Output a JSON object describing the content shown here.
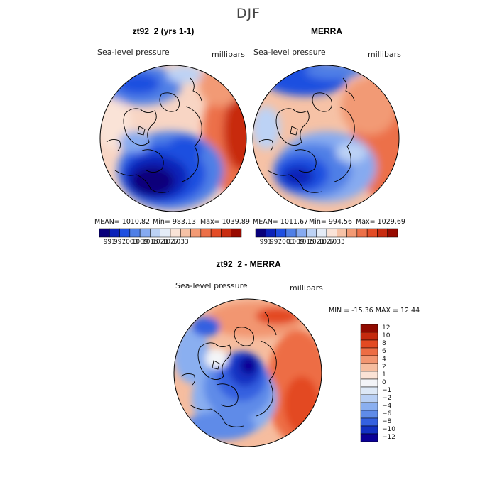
{
  "figure": {
    "season": "DJF"
  },
  "panels": [
    {
      "id": "model",
      "title": "zt92_2 (yrs 1-1)",
      "variable": "Sea-level pressure",
      "units": "millibars",
      "stats": {
        "mean": "MEAN= 1010.82",
        "min": "Min= 983.13",
        "max": "Max= 1039.89"
      },
      "colorbar_ticks": [
        "991",
        "997",
        "1003",
        "1009",
        "1015",
        "1021",
        "1027",
        "1033"
      ]
    },
    {
      "id": "obs",
      "title": "MERRA",
      "variable": "Sea-level pressure",
      "units": "millibars",
      "stats": {
        "mean": "MEAN= 1011.67",
        "min": "Min= 994.56",
        "max": "Max= 1029.69"
      },
      "colorbar_ticks": [
        "991",
        "997",
        "1003",
        "1009",
        "1015",
        "1021",
        "1027",
        "1033"
      ]
    },
    {
      "id": "diff",
      "title": "zt92_2 - MERRA",
      "variable": "Sea-level pressure",
      "units": "millibars",
      "stats_line": "MIN = -15.36  MAX =  12.44",
      "colorbar_ticks": [
        "12",
        "10",
        "8",
        "6",
        "4",
        "2",
        "1",
        "0",
        "−1",
        "−2",
        "−4",
        "−6",
        "−8",
        "−10",
        "−12"
      ]
    }
  ],
  "colors": {
    "abs_scale": [
      "#08007a",
      "#0b22b8",
      "#1f4fe0",
      "#4f7fe6",
      "#86aaf0",
      "#bcd2f5",
      "#e4ecf7",
      "#fae3d7",
      "#f6c2a6",
      "#f29a74",
      "#ec7048",
      "#e34c26",
      "#c82c10",
      "#970a00"
    ],
    "diff_scale": [
      "#900a00",
      "#c42a0e",
      "#e34a22",
      "#ed6d44",
      "#f29671",
      "#f6bd9f",
      "#fae2d5",
      "#f3f4f7",
      "#dde8f6",
      "#b8cff4",
      "#8aaff0",
      "#5f8be8",
      "#3461e0",
      "#1231c2",
      "#0a0096"
    ]
  }
}
